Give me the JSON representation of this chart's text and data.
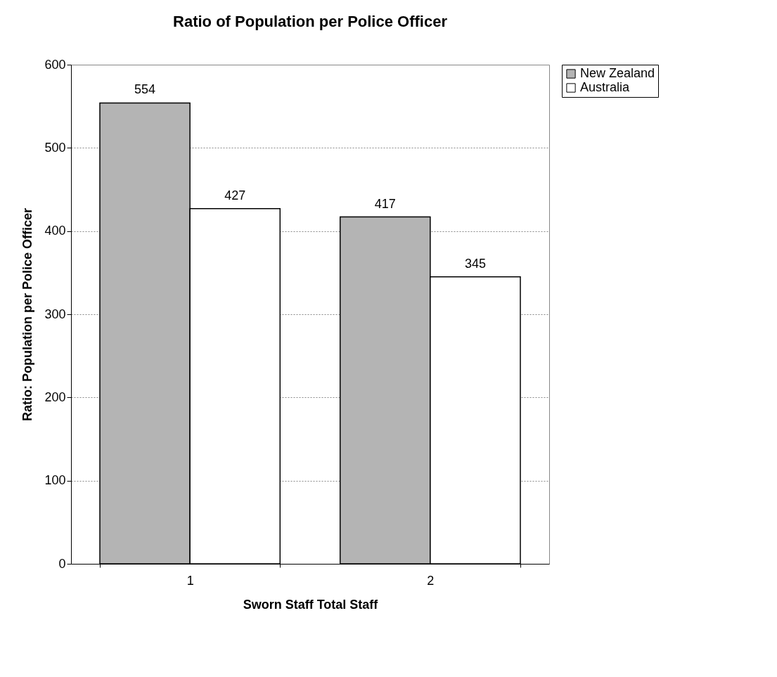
{
  "chart_data": {
    "type": "bar",
    "title": "Ratio of Population per Police Officer",
    "xlabel": "Sworn Staff   Total Staff",
    "ylabel": "Ratio: Population per Police Officer",
    "categories": [
      "1",
      "2"
    ],
    "series": [
      {
        "name": "New Zealand",
        "color": "#b4b4b4",
        "values": [
          554,
          417
        ]
      },
      {
        "name": "Australia",
        "color": "#ffffff",
        "values": [
          427,
          345
        ]
      }
    ],
    "ylim": [
      0,
      600
    ],
    "yticks": [
      0,
      100,
      200,
      300,
      400,
      500,
      600
    ],
    "grid": "y",
    "legend": "right",
    "data_labels": true
  }
}
